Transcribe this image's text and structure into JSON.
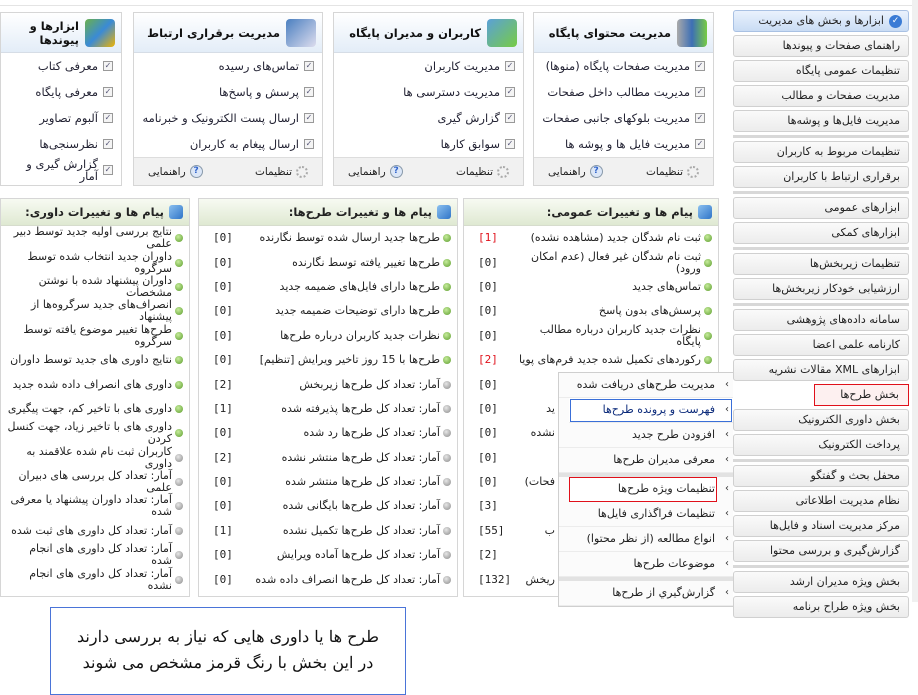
{
  "top_boxes": [
    {
      "title": "مدیریت محتوای پایگاه",
      "icon": "binders-icon",
      "items": [
        "مدیریت صفحات پایگاه (منوها)",
        "مدیریت مطالب داخل صفحات",
        "مدیریت بلوکهای جانبی صفحات",
        "مدیریت فایل ها و پوشه ها"
      ],
      "settings": "تنظیمات",
      "help": "راهنمایی"
    },
    {
      "title": "کاربران و مدیران پایگاه",
      "icon": "users-icon",
      "items": [
        "مدیریت کاربران",
        "مدیریت دسترسی ها",
        "گزارش گیری",
        "سوابق کارها"
      ],
      "settings": "تنظیمات",
      "help": "راهنمایی"
    },
    {
      "title": "مدیریت برقراری ارتباط",
      "icon": "contact-card-icon",
      "items": [
        "تماس‌های رسیده",
        "پرسش و پاسخ‌ها",
        "ارسال پست الکترونیک و خبرنامه",
        "ارسال پیغام به کاربران"
      ],
      "settings": "تنظیمات",
      "help": "راهنمایی"
    },
    {
      "title": "ابزارها و پیوندها",
      "icon": "globe-tools-icon",
      "items": [
        "معرفی کتاب",
        "معرفی پایگاه",
        "آلبوم تصاویر",
        "نظرسنجی‌ها",
        "گزارش گیری و آمار"
      ]
    }
  ],
  "panels": [
    {
      "title": "پیام ها و تغییرات عمومی:",
      "rows": [
        {
          "label": "ثبت نام شدگان جدید (مشاهده نشده)",
          "count": "[1]",
          "dot": "green",
          "highlight": true
        },
        {
          "label": "ثبت نام شدگان غیر فعال (عدم امکان ورود)",
          "count": "[0]",
          "dot": "green"
        },
        {
          "label": "تماس‌های جدید",
          "count": "[0]",
          "dot": "green"
        },
        {
          "label": "پرسش‌های بدون پاسخ",
          "count": "[0]",
          "dot": "green"
        },
        {
          "label": "نظرات جدید کاربران درباره مطالب پایگاه",
          "count": "[0]",
          "dot": "green"
        },
        {
          "label": "رکوردهای تکمیل شده جدید فرم‌های پویا",
          "count": "[2]",
          "dot": "green",
          "highlight": true
        },
        {
          "count": "[0]"
        },
        {
          "fragment": "ید",
          "count": "[0]"
        },
        {
          "fragment": "نشده",
          "count": "[0]"
        },
        {
          "count": "[0]"
        },
        {
          "fragment": "فحات)",
          "count": "[0]"
        },
        {
          "count": "[3]"
        },
        {
          "fragment": "ب",
          "count": "[55]"
        },
        {
          "count": "[2]"
        },
        {
          "fragment": "ریخش",
          "count": "[132]"
        }
      ]
    },
    {
      "title": "پیام ها و تغییرات طرح‌ها:",
      "rows": [
        {
          "label": "طرح‌ها جدید ارسال شده توسط نگارنده",
          "count": "[0]",
          "dot": "green"
        },
        {
          "label": "طرح‌ها تغییر یافته توسط نگارنده",
          "count": "[0]",
          "dot": "green"
        },
        {
          "label": "طرح‌ها دارای فایل‌های ضمیمه جدید",
          "count": "[0]",
          "dot": "green"
        },
        {
          "label": "طرح‌ها دارای توضیحات ضمیمه جدید",
          "count": "[0]",
          "dot": "green"
        },
        {
          "label": "نظرات جدید کاربران درباره طرح‌ها",
          "count": "[0]",
          "dot": "green"
        },
        {
          "label": "طرح‌ها با 15 روز تاخیر ویرایش [تنظیم]",
          "count": "[0]",
          "dot": "green"
        },
        {
          "label": "آمار: تعداد کل طرح‌ها زیربخش",
          "count": "[2]",
          "dot": "gray"
        },
        {
          "label": "آمار: تعداد کل طرح‌ها پذیرفته شده",
          "count": "[1]",
          "dot": "gray"
        },
        {
          "label": "آمار: تعداد کل طرح‌ها رد شده",
          "count": "[0]",
          "dot": "gray"
        },
        {
          "label": "آمار: تعداد کل طرح‌ها منتشر نشده",
          "count": "[2]",
          "dot": "gray"
        },
        {
          "label": "آمار: تعداد کل طرح‌ها منتشر شده",
          "count": "[0]",
          "dot": "gray"
        },
        {
          "label": "آمار: تعداد کل طرح‌ها بایگانی شده",
          "count": "[0]",
          "dot": "gray"
        },
        {
          "label": "آمار: تعداد کل طرح‌ها تکمیل نشده",
          "count": "[1]",
          "dot": "gray"
        },
        {
          "label": "آمار: تعداد کل طرح‌ها آماده ویرایش",
          "count": "[0]",
          "dot": "gray"
        },
        {
          "label": "آمار: تعداد کل طرح‌ها انصراف داده شده",
          "count": "[0]",
          "dot": "gray"
        }
      ]
    },
    {
      "title": "پیام ها و تغییرات داوری:",
      "rows": [
        {
          "label": "نتایج بررسی اولیه جدید توسط دبیر علمی",
          "dot": "green"
        },
        {
          "label": "داوران جدید انتخاب شده توسط سرگروه",
          "dot": "green"
        },
        {
          "label": "داوران پیشنهاد شده با نوشتن مشخصات",
          "dot": "green"
        },
        {
          "label": "انصراف‌های جدید سرگروه‌ها از پیشنهاد",
          "dot": "green"
        },
        {
          "label": "طرح‌ها تغییر موضوع یافته توسط سرگروه",
          "dot": "green"
        },
        {
          "label": "نتایج داوری های جدید توسط داوران",
          "dot": "green"
        },
        {
          "label": "داوری های انصراف داده شده جدید",
          "dot": "green"
        },
        {
          "label": "داوری های با تاخیر کم، جهت پیگیری",
          "dot": "green"
        },
        {
          "label": "داوری های با تاخیر زیاد، جهت کنسل کردن",
          "dot": "green"
        },
        {
          "label": "کاربران ثبت نام شده علاقمند به داوری",
          "dot": "gray"
        },
        {
          "label": "آمار: تعداد کل بررسی های دبیران علمی",
          "dot": "gray"
        },
        {
          "label": "آمار: تعداد داوران پیشنهاد یا معرفی شده",
          "dot": "gray"
        },
        {
          "label": "آمار: تعداد کل داوری های ثبت شده",
          "dot": "gray"
        },
        {
          "label": "آمار: تعداد کل داوری های انجام شده",
          "dot": "gray"
        },
        {
          "label": "آمار: تعداد کل داوری های انجام نشده",
          "dot": "gray"
        }
      ]
    }
  ],
  "sidebar": {
    "groups": [
      [
        "ابزارها و بخش های مدیریت",
        "راهنمای صفحات و پیوندها",
        "تنظیمات عمومی پایگاه",
        "مدیریت صفحات و مطالب",
        "مدیریت فایل‌ها و پوشه‌ها"
      ],
      [
        "تنظیمات مربوط به کاربران",
        "برقراری ارتباط با کاربران"
      ],
      [
        "ابزارهای عمومی",
        "ابزارهای کمکی"
      ],
      [
        "تنظیمات زیربخش‌ها",
        "ارزشیابی خودکار زیربخش‌ها"
      ],
      [
        "سامانه داده‌های پژوهشی",
        "کارنامه علمی اعضا",
        "ابزارهای XML مقالات نشریه",
        "بخش طرح‌ها",
        "بخش داوری الکترونیک",
        "پرداخت الکترونیک"
      ],
      [
        "محفل بحث و گفتگو",
        "نظام مدیریت اطلاعاتی",
        "مرکز مدیریت اسناد و فایل‌ها",
        "گزارش‌گیری و بررسی محتوا"
      ],
      [
        "بخش ویژه مدیران ارشد",
        "بخش ویژه طراح برنامه"
      ]
    ],
    "active": "ابزارها و بخش های مدیریت",
    "highlighted": "بخش طرح‌ها"
  },
  "submenu": {
    "groups": [
      [
        "مدیریت طرح‌های دریافت شده",
        "فهرست و پرونده طرح‌ها",
        "افزودن طرح جدید",
        "معرفی مدیران طرح‌ها"
      ],
      [
        "تنظیمات ویژه طرح‌ها",
        "تنظیمات فراگذاری فایل‌ها",
        "انواع مطالعه (از نظر محتوا)",
        "موضوعات طرح‌ها"
      ],
      [
        "گزارش‌گیري از طرح‌ها"
      ]
    ],
    "hovered": "فهرست و پرونده طرح‌ها",
    "highlighted": "تنظیمات ویژه طرح‌ها"
  },
  "tooltip": {
    "line1": "طرح ها یا داوری هایی که نیاز به بررسی دارند",
    "line2": "در این بخش با رنگ قرمز مشخص می شوند"
  },
  "colors": {
    "highlight_red": "#e0101a",
    "hover_blue": "#3a6fd8",
    "accent_blue": "#3a7bd5"
  }
}
